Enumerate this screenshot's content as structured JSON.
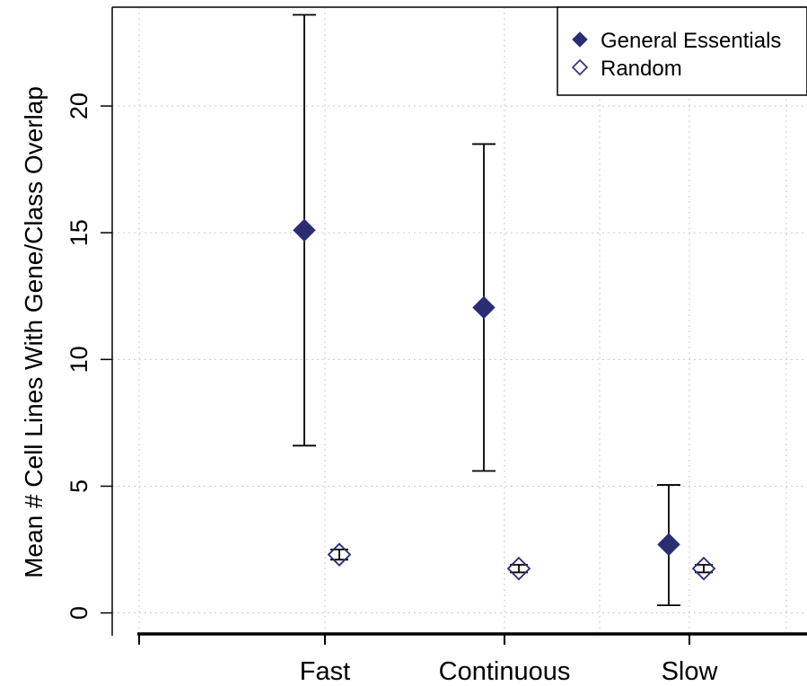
{
  "chart_data": {
    "type": "scatter",
    "title": "",
    "xlabel": "",
    "ylabel": "Mean # Cell Lines With Gene/Class Overlap",
    "categories": [
      "Fast",
      "Continuous",
      "Slow"
    ],
    "ylim": [
      -0.9,
      23.9
    ],
    "yticks": [
      0,
      5,
      10,
      15,
      20
    ],
    "grid": true,
    "legend_position": "top-right",
    "series": [
      {
        "name": "General Essentials",
        "marker": "filled-diamond",
        "color": "#2b2d73",
        "values": [
          15.1,
          12.05,
          2.7
        ],
        "error_low": [
          6.6,
          5.6,
          0.3
        ],
        "error_high": [
          23.6,
          18.5,
          5.05
        ]
      },
      {
        "name": "Random",
        "marker": "open-diamond",
        "color": "#2b2d73",
        "values": [
          2.3,
          1.75,
          1.75
        ],
        "error_low": [
          2.1,
          1.6,
          1.6
        ],
        "error_high": [
          2.5,
          1.9,
          1.9
        ]
      }
    ]
  }
}
